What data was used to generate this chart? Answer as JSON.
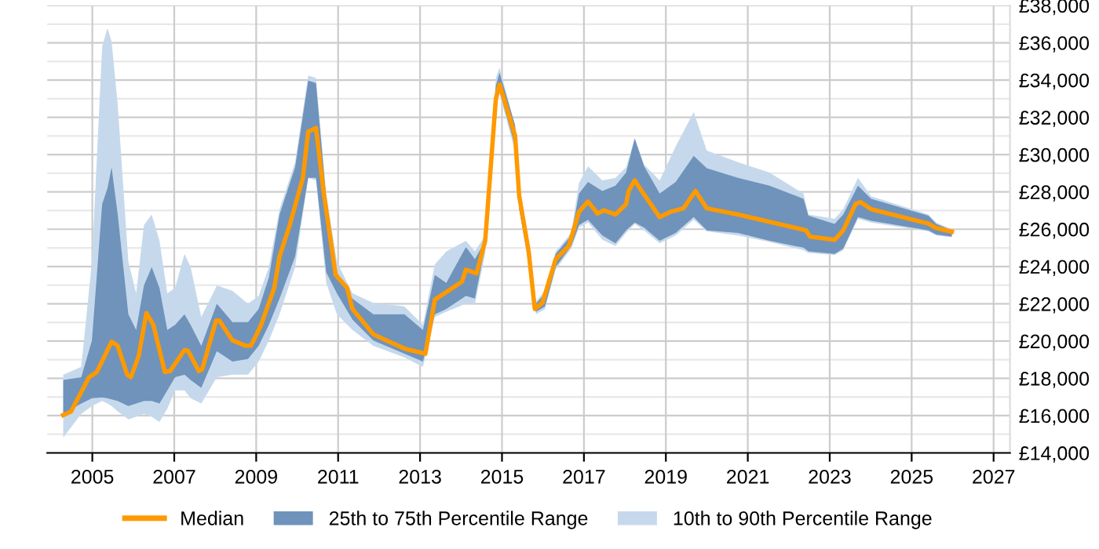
{
  "chart_data": {
    "type": "line",
    "xlim": [
      2003.9,
      2027.4
    ],
    "xticks": [
      2005,
      2007,
      2009,
      2011,
      2013,
      2015,
      2017,
      2019,
      2021,
      2023,
      2025,
      2027
    ],
    "ylim": [
      14000,
      38000
    ],
    "yticks": [
      {
        "value": 14000,
        "label": "£14,000"
      },
      {
        "value": 15000,
        "label": null
      },
      {
        "value": 16000,
        "label": "£16,000"
      },
      {
        "value": 17000,
        "label": null
      },
      {
        "value": 18000,
        "label": "£18,000"
      },
      {
        "value": 19000,
        "label": null
      },
      {
        "value": 20000,
        "label": "£20,000"
      },
      {
        "value": 21000,
        "label": null
      },
      {
        "value": 22000,
        "label": "£22,000"
      },
      {
        "value": 23000,
        "label": null
      },
      {
        "value": 24000,
        "label": "£24,000"
      },
      {
        "value": 25000,
        "label": null
      },
      {
        "value": 26000,
        "label": "£26,000"
      },
      {
        "value": 27000,
        "label": null
      },
      {
        "value": 28000,
        "label": "£28,000"
      },
      {
        "value": 29000,
        "label": null
      },
      {
        "value": 30000,
        "label": "£30,000"
      },
      {
        "value": 31000,
        "label": null
      },
      {
        "value": 32000,
        "label": "£32,000"
      },
      {
        "value": 33000,
        "label": null
      },
      {
        "value": 34000,
        "label": "£34,000"
      },
      {
        "value": 35000,
        "label": null
      },
      {
        "value": 36000,
        "label": "£36,000"
      },
      {
        "value": 37000,
        "label": null
      },
      {
        "value": 38000,
        "label": "£38,000"
      }
    ],
    "grid": true,
    "legend": "bottom",
    "marker": "none",
    "line_style": "solid",
    "series": [
      {
        "name": "Median",
        "color": "#ff9900",
        "x": [
          2004.29,
          2004.48,
          2004.92,
          2005.11,
          2005.47,
          2005.62,
          2005.85,
          2005.94,
          2006.13,
          2006.32,
          2006.49,
          2006.77,
          2006.9,
          2007.25,
          2007.34,
          2007.6,
          2007.68,
          2008.02,
          2008.1,
          2008.42,
          2008.74,
          2008.87,
          2009.0,
          2009.12,
          2009.44,
          2009.57,
          2009.82,
          2010.14,
          2010.27,
          2010.46,
          2010.65,
          2010.94,
          2011.22,
          2011.35,
          2011.86,
          2012.24,
          2012.62,
          2012.75,
          2013.13,
          2013.36,
          2014.02,
          2014.12,
          2014.38,
          2014.59,
          2014.85,
          2014.94,
          2015.32,
          2015.42,
          2015.65,
          2015.8,
          2015.99,
          2016.31,
          2016.63,
          2016.88,
          2017.1,
          2017.33,
          2017.48,
          2017.77,
          2018.03,
          2018.09,
          2018.24,
          2018.41,
          2018.85,
          2019.11,
          2019.43,
          2019.72,
          2020.0,
          2020.76,
          2022.42,
          2022.52,
          2023.12,
          2023.33,
          2023.63,
          2023.75,
          2024.01,
          2025.41,
          2025.6,
          2025.98
        ],
        "values": [
          16030,
          16220,
          18060,
          18340,
          19970,
          19750,
          18200,
          18060,
          19180,
          21500,
          20870,
          18340,
          18390,
          19520,
          19470,
          18390,
          18480,
          21100,
          21100,
          20040,
          19750,
          19750,
          20310,
          20870,
          22850,
          24540,
          26230,
          28760,
          31240,
          31430,
          27920,
          23550,
          22850,
          21720,
          20360,
          19970,
          19600,
          19520,
          19320,
          22220,
          23180,
          23830,
          23630,
          25380,
          32990,
          33770,
          31010,
          27780,
          24820,
          21720,
          22060,
          24390,
          25100,
          26930,
          27490,
          26840,
          27010,
          26790,
          27350,
          28050,
          28620,
          28050,
          26650,
          26930,
          27120,
          28050,
          27120,
          26790,
          25940,
          25600,
          25430,
          25940,
          27350,
          27460,
          27070,
          26300,
          26060,
          25870
        ]
      },
      {
        "name": "25th to 75th Percentile Range",
        "type": "area",
        "color": "#6f93bb",
        "x": [
          2004.29,
          2004.73,
          2004.99,
          2005.24,
          2005.37,
          2005.47,
          2005.62,
          2005.88,
          2006.07,
          2006.26,
          2006.45,
          2006.64,
          2006.83,
          2007.02,
          2007.25,
          2007.4,
          2007.66,
          2008.04,
          2008.42,
          2008.8,
          2009.06,
          2009.31,
          2009.57,
          2009.95,
          2010.27,
          2010.46,
          2010.71,
          2010.97,
          2011.35,
          2011.86,
          2012.62,
          2013.07,
          2013.36,
          2013.64,
          2014.12,
          2014.34,
          2014.59,
          2014.85,
          2014.94,
          2015.32,
          2015.42,
          2015.65,
          2015.83,
          2016.05,
          2016.31,
          2016.69,
          2016.88,
          2017.1,
          2017.45,
          2017.77,
          2018.03,
          2018.24,
          2018.47,
          2018.85,
          2019.24,
          2019.68,
          2020.0,
          2020.76,
          2021.53,
          2022.36,
          2022.48,
          2023.12,
          2023.33,
          2023.69,
          2024.01,
          2025.41,
          2025.6,
          2025.98
        ],
        "lower": [
          16090,
          16650,
          16930,
          16980,
          16930,
          16870,
          16790,
          16510,
          16650,
          16790,
          16790,
          16650,
          17350,
          18060,
          18200,
          17910,
          17490,
          19460,
          18900,
          19040,
          19740,
          20870,
          22280,
          24530,
          28760,
          28760,
          23690,
          22560,
          21150,
          20030,
          19320,
          18900,
          21440,
          21720,
          22420,
          22280,
          25100,
          32700,
          33410,
          30450,
          27070,
          24250,
          21570,
          21860,
          23970,
          25100,
          26220,
          26500,
          25660,
          25240,
          25940,
          26360,
          26080,
          25380,
          25800,
          26650,
          25940,
          25800,
          25380,
          25010,
          24810,
          24670,
          24960,
          26650,
          26450,
          25940,
          25720,
          25600
        ],
        "values": [
          null,
          null,
          null,
          null,
          null,
          null,
          null,
          null,
          null,
          null,
          null,
          null,
          null,
          null,
          null,
          null,
          null,
          null,
          null,
          null,
          null,
          null,
          null,
          null,
          null,
          null,
          null,
          null,
          null,
          null,
          null,
          null,
          null,
          null,
          null,
          null,
          null,
          null,
          null,
          null,
          null,
          null,
          null,
          null,
          null,
          null,
          null,
          null,
          null,
          null,
          null,
          null,
          null,
          null,
          null,
          null,
          null,
          null,
          null,
          null,
          null,
          null,
          null,
          null,
          null,
          null,
          null,
          null
        ],
        "upper": [
          17910,
          18060,
          20030,
          27350,
          28200,
          29320,
          26790,
          21440,
          20590,
          22980,
          23970,
          22840,
          20590,
          20870,
          21440,
          20870,
          19740,
          22000,
          21010,
          21010,
          21720,
          23410,
          26790,
          29320,
          33970,
          33830,
          27630,
          23690,
          22280,
          21440,
          21440,
          20590,
          23550,
          23120,
          25040,
          24390,
          25380,
          33690,
          34390,
          31570,
          28200,
          25240,
          22000,
          22560,
          24670,
          25660,
          27910,
          28530,
          28050,
          28340,
          29040,
          30870,
          29380,
          27910,
          28530,
          29930,
          29270,
          28760,
          28340,
          27630,
          26730,
          26280,
          26790,
          28340,
          27630,
          26730,
          26280,
          25940
        ]
      },
      {
        "name": "10th to 90th Percentile Range",
        "type": "area",
        "color": "#c6d9ec",
        "x": [
          2004.29,
          2004.73,
          2004.99,
          2005.24,
          2005.37,
          2005.47,
          2005.62,
          2005.88,
          2006.07,
          2006.26,
          2006.45,
          2006.64,
          2006.83,
          2007.02,
          2007.25,
          2007.4,
          2007.66,
          2008.04,
          2008.42,
          2008.8,
          2009.06,
          2009.31,
          2009.57,
          2009.95,
          2010.27,
          2010.46,
          2010.71,
          2010.97,
          2011.35,
          2011.86,
          2012.62,
          2013.07,
          2013.36,
          2013.64,
          2014.12,
          2014.34,
          2014.59,
          2014.85,
          2014.94,
          2015.32,
          2015.42,
          2015.65,
          2015.83,
          2016.05,
          2016.31,
          2016.69,
          2016.88,
          2017.1,
          2017.45,
          2017.77,
          2018.03,
          2018.24,
          2018.47,
          2018.85,
          2019.24,
          2019.68,
          2020.0,
          2020.76,
          2021.53,
          2022.36,
          2022.48,
          2023.12,
          2023.33,
          2023.69,
          2024.01,
          2025.41,
          2025.6,
          2025.98
        ],
        "lower": [
          14820,
          16090,
          16510,
          16790,
          16650,
          16510,
          16230,
          15800,
          15940,
          16090,
          15940,
          15660,
          16370,
          17350,
          17350,
          16930,
          16650,
          18060,
          18200,
          18200,
          18900,
          20030,
          21440,
          23970,
          28760,
          28620,
          23120,
          21440,
          20590,
          19740,
          19120,
          18620,
          21290,
          21570,
          22000,
          22000,
          24670,
          32560,
          33270,
          30170,
          27070,
          24110,
          21440,
          21720,
          23830,
          24960,
          26080,
          26360,
          25430,
          25100,
          25800,
          26280,
          25940,
          25240,
          25660,
          26500,
          25880,
          25660,
          25320,
          24870,
          24730,
          24610,
          24870,
          26560,
          26360,
          25880,
          25660,
          25570
        ],
        "values": [
          null,
          null,
          null,
          null,
          null,
          null,
          null,
          null,
          null,
          null,
          null,
          null,
          null,
          null,
          null,
          null,
          null,
          null,
          null,
          null,
          null,
          null,
          null,
          null,
          null,
          null,
          null,
          null,
          null,
          null,
          null,
          null,
          null,
          null,
          null,
          null,
          null,
          null,
          null,
          null,
          null,
          null,
          null,
          null,
          null,
          null,
          null,
          null,
          null,
          null,
          null,
          null,
          null,
          null,
          null,
          null,
          null,
          null,
          null,
          null,
          null,
          null,
          null,
          null,
          null,
          null,
          null,
          null
        ],
        "upper": [
          18200,
          18620,
          24250,
          35800,
          36790,
          36080,
          32700,
          24250,
          22560,
          26220,
          26790,
          25380,
          22560,
          22840,
          24670,
          23970,
          21290,
          22980,
          22700,
          22000,
          22420,
          23970,
          27070,
          29600,
          34250,
          34110,
          27910,
          24250,
          22560,
          22050,
          21860,
          20870,
          24110,
          24810,
          25380,
          24810,
          25660,
          34110,
          34670,
          31570,
          28480,
          25380,
          22140,
          22700,
          24810,
          25800,
          28480,
          29380,
          28620,
          28760,
          29320,
          30870,
          29460,
          28620,
          30450,
          32280,
          30220,
          29600,
          29040,
          27910,
          26790,
          26560,
          27070,
          28760,
          27770,
          26790,
          26360,
          26000
        ]
      }
    ]
  }
}
